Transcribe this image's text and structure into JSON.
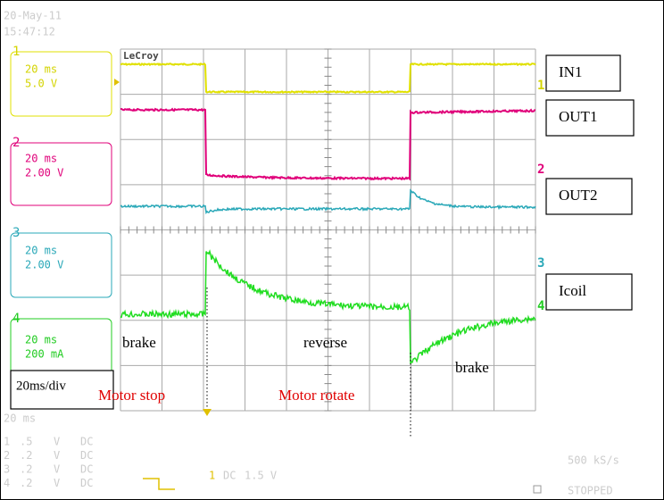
{
  "header": {
    "date": "20-May-11",
    "time": "15:47:12"
  },
  "brand": "LeCroy",
  "channels": [
    {
      "number": "1",
      "timebase": "20 ms",
      "scale": "5.0 V"
    },
    {
      "number": "2",
      "timebase": "20 ms",
      "scale": "2.00 V"
    },
    {
      "number": "3",
      "timebase": "20 ms",
      "scale": "2.00 V"
    },
    {
      "number": "4",
      "timebase": "20 ms",
      "scale": "200 mA"
    }
  ],
  "trace_markers": [
    "1",
    "2",
    "3",
    "4"
  ],
  "annotations": {
    "signals": [
      "IN1",
      "OUT1",
      "OUT2",
      "Icoil"
    ],
    "phases": [
      "brake",
      "reverse",
      "brake"
    ],
    "states": [
      "Motor stop",
      "Motor rotate"
    ],
    "timebase_note": "20ms/div"
  },
  "footer": {
    "timebase": "20 ms",
    "channel_rows": [
      {
        "number": "1",
        "scale": ".5",
        "unit": "V",
        "coupling": "DC"
      },
      {
        "number": "2",
        "scale": ".2",
        "unit": "V",
        "coupling": "DC"
      },
      {
        "number": "3",
        "scale": ".2",
        "unit": "V",
        "coupling": "DC"
      },
      {
        "number": "4",
        "scale": ".2",
        "unit": "V",
        "coupling": "DC"
      }
    ],
    "trigger": {
      "channel": "1",
      "coupling": "DC",
      "level": "1.5 V"
    },
    "sample_rate": "500 kS/s",
    "status": "STOPPED"
  }
}
